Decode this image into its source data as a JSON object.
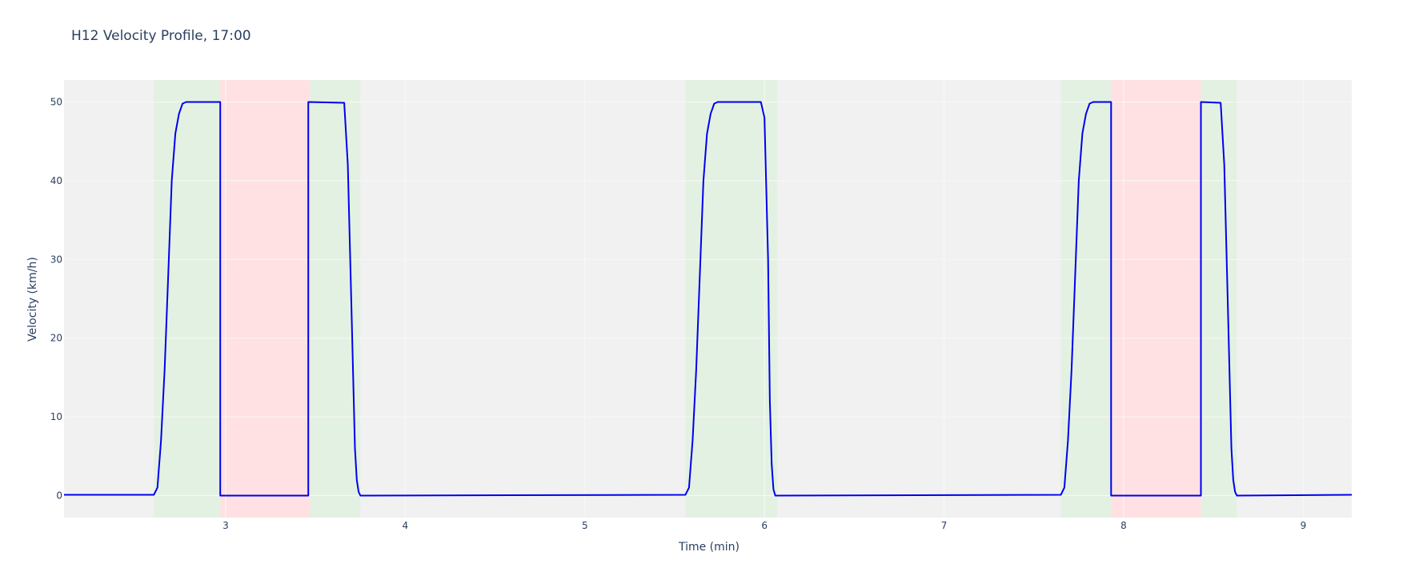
{
  "chart_data": {
    "type": "line",
    "title": "H12 Velocity Profile, 17:00",
    "xlabel": "Time (min)",
    "ylabel": "Velocity (km/h)",
    "xlim": [
      2.1,
      9.27
    ],
    "ylim": [
      -2.8,
      52.8
    ],
    "xticks": [
      3,
      4,
      5,
      6,
      7,
      8,
      9
    ],
    "yticks": [
      0,
      10,
      20,
      30,
      40,
      50
    ],
    "grid": true,
    "legend": "none",
    "colors": {
      "line": "#0000ee",
      "plot_bg": "#f1f1f1",
      "gridline": "#f8f8f8",
      "green_band": "#e3f1e3",
      "red_band": "#ffe1e3"
    },
    "bands": [
      {
        "kind": "green",
        "x0": 2.6,
        "x1": 2.97
      },
      {
        "kind": "red",
        "x0": 2.97,
        "x1": 3.47
      },
      {
        "kind": "green",
        "x0": 3.47,
        "x1": 3.75
      },
      {
        "kind": "green",
        "x0": 5.56,
        "x1": 6.07
      },
      {
        "kind": "green",
        "x0": 7.65,
        "x1": 7.93
      },
      {
        "kind": "red",
        "x0": 7.93,
        "x1": 8.43
      },
      {
        "kind": "green",
        "x0": 8.43,
        "x1": 8.63
      }
    ],
    "series": [
      {
        "x": [
          2.1,
          2.6,
          2.62,
          2.64,
          2.66,
          2.68,
          2.7,
          2.72,
          2.74,
          2.76,
          2.78,
          2.8,
          2.97,
          2.97,
          3.46,
          3.46,
          3.66,
          3.68,
          3.7,
          3.72,
          3.73,
          3.74,
          3.75,
          5.56,
          5.58,
          5.6,
          5.62,
          5.64,
          5.66,
          5.68,
          5.7,
          5.72,
          5.74,
          5.98,
          6.0,
          6.02,
          6.03,
          6.04,
          6.05,
          6.06,
          7.65,
          7.67,
          7.69,
          7.71,
          7.73,
          7.75,
          7.77,
          7.79,
          7.81,
          7.83,
          7.93,
          7.93,
          8.43,
          8.43,
          8.54,
          8.56,
          8.58,
          8.6,
          8.61,
          8.62,
          8.63,
          9.27
        ],
        "y": [
          0.1,
          0.1,
          1.0,
          7.0,
          16.0,
          28.0,
          40.0,
          46.0,
          48.5,
          49.8,
          50.0,
          50.0,
          50.0,
          0.0,
          0.0,
          50.0,
          49.9,
          42.0,
          24.0,
          6.0,
          2.0,
          0.5,
          0.0,
          0.1,
          1.0,
          7.0,
          16.0,
          28.0,
          40.0,
          46.0,
          48.5,
          49.8,
          50.0,
          50.0,
          48.0,
          30.0,
          12.0,
          4.0,
          0.8,
          0.0,
          0.1,
          1.0,
          7.0,
          16.0,
          28.0,
          40.0,
          46.0,
          48.5,
          49.8,
          50.0,
          50.0,
          0.0,
          0.0,
          50.0,
          49.9,
          42.0,
          24.0,
          6.0,
          2.0,
          0.5,
          0.0,
          0.1
        ]
      }
    ]
  }
}
